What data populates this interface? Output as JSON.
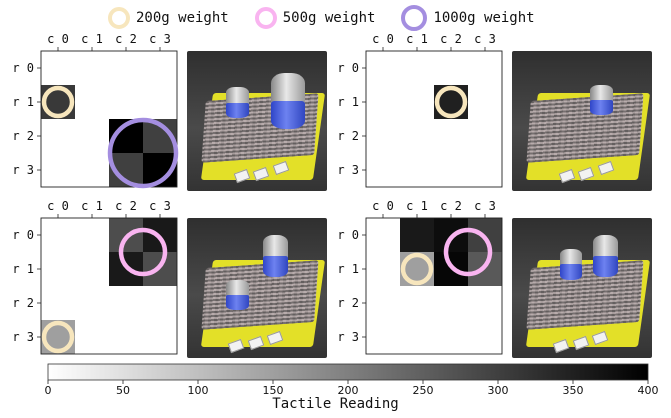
{
  "legend": {
    "items": [
      {
        "label": "200g weight",
        "color": "#f7e6bd"
      },
      {
        "label": "500g weight",
        "color": "#f9b4f0"
      },
      {
        "label": "1000g weight",
        "color": "#a48ee0"
      }
    ]
  },
  "chart_data": {
    "type": "heatmap",
    "columns": [
      "c 0",
      "c 1",
      "c 2",
      "c 3"
    ],
    "rows": [
      "r 0",
      "r 1",
      "r 2",
      "r 3"
    ],
    "colorbar": {
      "min": 0,
      "max": 400,
      "ticks": [
        0,
        50,
        100,
        150,
        200,
        250,
        300,
        350,
        400
      ],
      "label": "Tactile Reading",
      "colormap": "white-to-black"
    },
    "panels": [
      {
        "cells": [
          [
            0,
            0,
            0,
            0
          ],
          [
            310,
            0,
            0,
            0
          ],
          [
            0,
            0,
            400,
            300
          ],
          [
            0,
            0,
            300,
            400
          ]
        ],
        "weights": [
          {
            "type": "200g weight",
            "row": 1,
            "col": 0
          },
          {
            "type": "1000g weight",
            "row": 2.5,
            "col": 2.5
          }
        ]
      },
      {
        "cells": [
          [
            0,
            0,
            0,
            0
          ],
          [
            0,
            0,
            350,
            0
          ],
          [
            0,
            0,
            0,
            0
          ],
          [
            0,
            0,
            0,
            0
          ]
        ],
        "weights": [
          {
            "type": "200g weight",
            "row": 1,
            "col": 2
          }
        ]
      },
      {
        "cells": [
          [
            0,
            0,
            280,
            360
          ],
          [
            0,
            0,
            360,
            280
          ],
          [
            0,
            0,
            0,
            0
          ],
          [
            150,
            0,
            0,
            0
          ]
        ],
        "weights": [
          {
            "type": "500g weight",
            "row": 0.5,
            "col": 2.5
          },
          {
            "type": "200g weight",
            "row": 3,
            "col": 0
          }
        ]
      },
      {
        "cells": [
          [
            0,
            360,
            380,
            300
          ],
          [
            0,
            150,
            390,
            260
          ],
          [
            0,
            0,
            0,
            0
          ],
          [
            0,
            0,
            0,
            0
          ]
        ],
        "weights": [
          {
            "type": "500g weight",
            "row": 0.5,
            "col": 2.5
          },
          {
            "type": "200g weight",
            "row": 1,
            "col": 1
          }
        ]
      }
    ]
  }
}
